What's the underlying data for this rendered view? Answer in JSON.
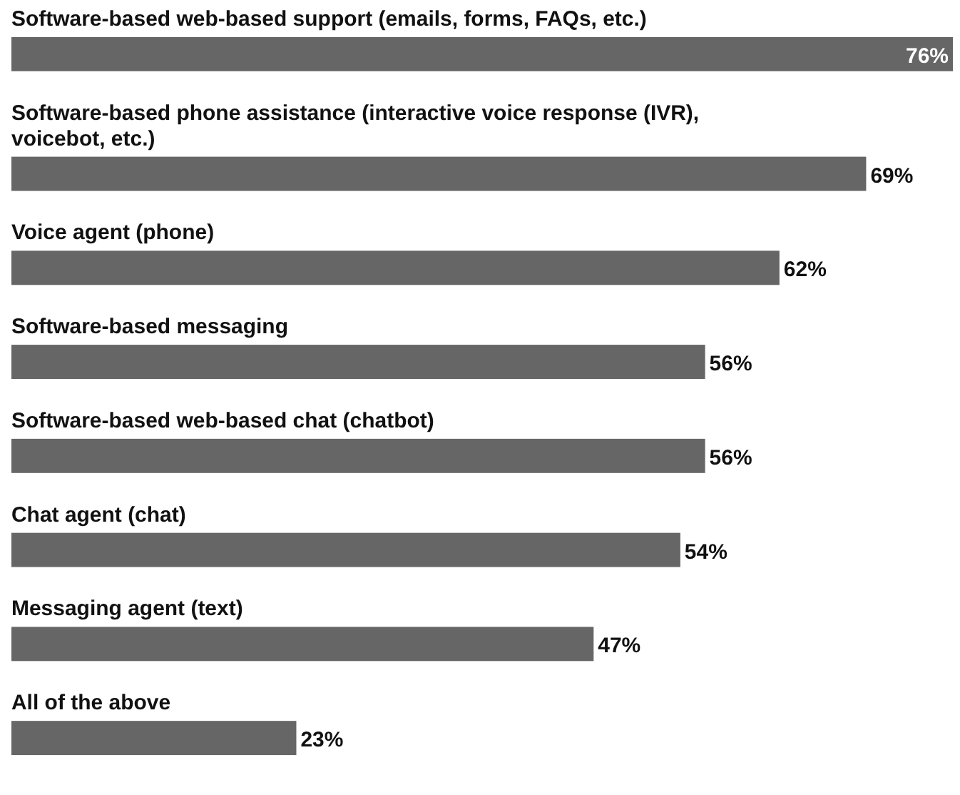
{
  "chart_data": {
    "type": "bar",
    "orientation": "horizontal",
    "data_labels": true,
    "color": "#666666",
    "categories": [
      "Software-based web-based support (emails, forms, FAQs, etc.)",
      "Software-based phone assistance (interactive voice response (IVR), voicebot, etc.)",
      "Voice agent (phone)",
      "Software-based messaging",
      "Software-based web-based chat (chatbot)",
      "Chat agent (chat)",
      "Messaging agent (text)",
      "All of the above"
    ],
    "values": [
      76,
      69,
      62,
      56,
      56,
      54,
      47,
      23
    ],
    "value_labels": [
      "76%",
      "69%",
      "62%",
      "56%",
      "56%",
      "54%",
      "47%",
      "23%"
    ]
  }
}
